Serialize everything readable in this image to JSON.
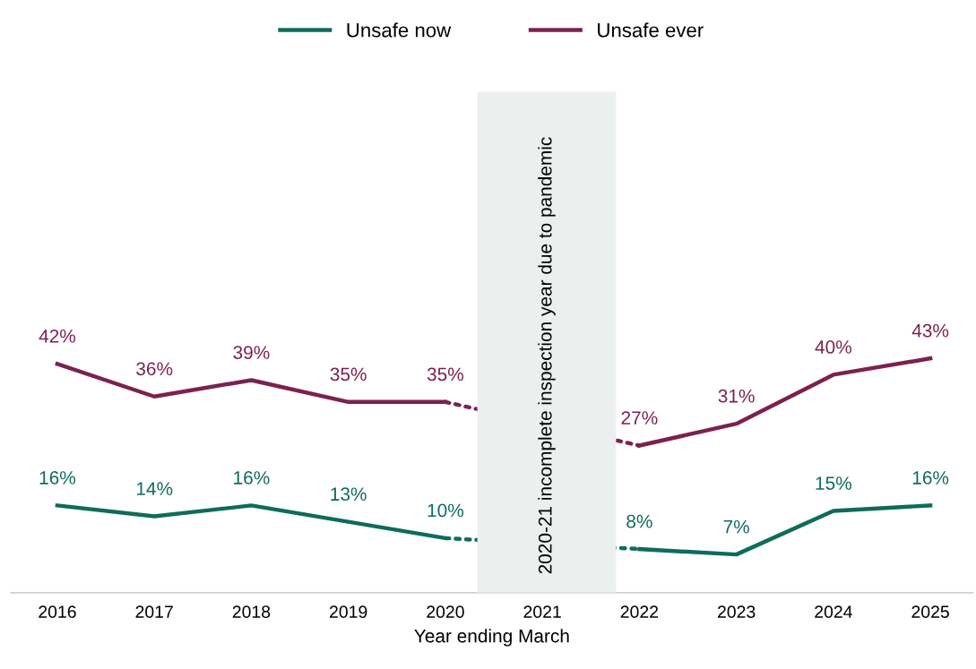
{
  "chart_data": {
    "type": "line",
    "xlabel": "Year ending March",
    "x": [
      2016,
      2017,
      2018,
      2019,
      2020,
      2021,
      2022,
      2023,
      2024,
      2025
    ],
    "xlim": [
      2015.52,
      2025.44
    ],
    "xticks": [
      2016,
      2017,
      2018,
      2019,
      2020,
      2021,
      2022,
      2023,
      2024,
      2025
    ],
    "tick_labels": "x",
    "grid": false,
    "legend": "top",
    "marker": "none",
    "series": [
      {
        "name": "Unsafe now",
        "color": "#0f6b5a",
        "values": [
          16,
          14,
          16,
          13,
          10,
          null,
          8,
          7,
          15,
          16
        ],
        "value_labels": [
          "16%",
          "14%",
          "16%",
          "13%",
          "10%",
          null,
          "8%",
          "7%",
          "15%",
          "16%"
        ]
      },
      {
        "name": "Unsafe ever",
        "color": "#7b2150",
        "values": [
          42,
          36,
          39,
          35,
          35,
          null,
          27,
          31,
          40,
          43
        ],
        "value_labels": [
          "42%",
          "36%",
          "39%",
          "35%",
          "35%",
          null,
          "27%",
          "31%",
          "40%",
          "43%"
        ]
      }
    ],
    "bands": [
      {
        "axis": "x",
        "from": 2020.33,
        "to": 2021.76,
        "label": "2020-21 incomplete inspection year due to pandemic",
        "color": "#ebf0ee"
      }
    ]
  }
}
